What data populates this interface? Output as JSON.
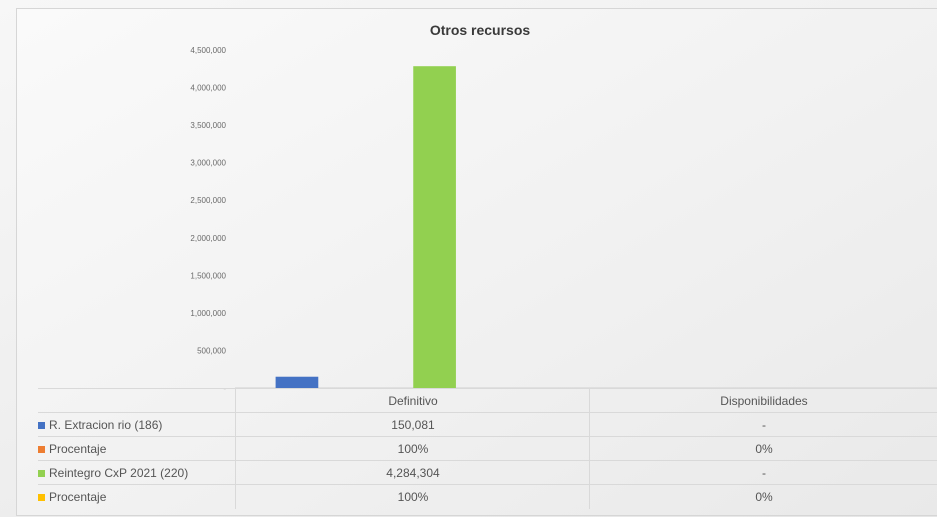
{
  "chart_data": {
    "type": "bar",
    "title": "Otros recursos",
    "categories": [
      "Definitivo",
      "Disponibilidades"
    ],
    "series": [
      {
        "name": "R. Extracion rio (186)",
        "color": "#4472c4",
        "values": [
          150081,
          0
        ],
        "labels": [
          "150,081",
          "-"
        ]
      },
      {
        "name": "Procentaje",
        "color": "#ed7d31",
        "values": [
          1,
          0
        ],
        "labels": [
          "100%",
          "0%"
        ]
      },
      {
        "name": "Reintegro CxP 2021 (220)",
        "color": "#92d050",
        "values": [
          4284304,
          0
        ],
        "labels": [
          "4,284,304",
          "-"
        ]
      },
      {
        "name": "Procentaje",
        "color": "#ffc000",
        "values": [
          1,
          0
        ],
        "labels": [
          "100%",
          "0%"
        ]
      }
    ],
    "ylim": [
      0,
      4500000
    ],
    "yticks": [
      0,
      500000,
      1000000,
      1500000,
      2000000,
      2500000,
      3000000,
      3500000,
      4000000,
      4500000
    ],
    "ytick_labels": [
      "-",
      "500,000",
      "1,000,000",
      "1,500,000",
      "2,000,000",
      "2,500,000",
      "3,000,000",
      "3,500,000",
      "4,000,000",
      "4,500,000"
    ],
    "grid": false,
    "legend": "data-table"
  }
}
